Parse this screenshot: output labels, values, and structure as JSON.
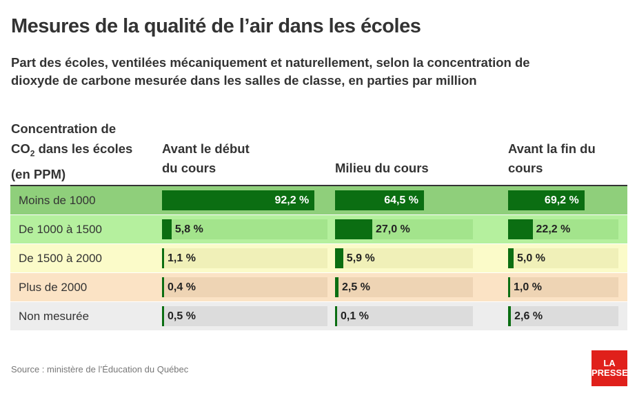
{
  "chart_data": {
    "type": "table-bars",
    "title": "Mesures de la qualité de l’air dans les écoles",
    "subtitle": "Part des écoles, ventilées mécaniquement et naturellement, selon la concentration de dioxyde de carbone mesurée dans les salles de classe, en parties par million",
    "row_header": [
      "Concentration de",
      "CO",
      "2",
      "dans les écoles",
      "(en PPM)"
    ],
    "categories": [
      "Moins de 1000",
      "De 1000 à 1500",
      "De 1500 à 2000",
      "Plus de 2000",
      "Non mesurée"
    ],
    "row_colors": [
      "#8fcf7b",
      "#b5f09e",
      "#fbfbc9",
      "#fbe3c5",
      "#ededed"
    ],
    "track_colors": [
      "#8fcf7b",
      "#a3e48c",
      "#f0f0b8",
      "#eed4b4",
      "#dcdcdc"
    ],
    "bar_color": "#0b6e12",
    "series": [
      {
        "name": "Avant le début du cours",
        "values": [
          92.2,
          5.8,
          1.1,
          0.4,
          0.5
        ],
        "value_labels": [
          "92,2 %",
          "5,8 %",
          "1,1 %",
          "0,4 %",
          "0,5 %"
        ]
      },
      {
        "name": "Milieu du cours",
        "values": [
          64.5,
          27.0,
          5.9,
          2.5,
          0.1
        ],
        "value_labels": [
          "64,5 %",
          "27,0 %",
          "5,9 %",
          "2,5 %",
          "0,1 %"
        ]
      },
      {
        "name": "Avant la fin du cours",
        "values": [
          69.2,
          22.2,
          5.0,
          1.0,
          2.6
        ],
        "value_labels": [
          "69,2 %",
          "22,2 %",
          "5,0 %",
          "1,0 %",
          "2,6 %"
        ]
      }
    ],
    "source": "Source : ministère de l’Éducation du Québec",
    "logo": [
      "LA",
      "PRESSE"
    ]
  }
}
